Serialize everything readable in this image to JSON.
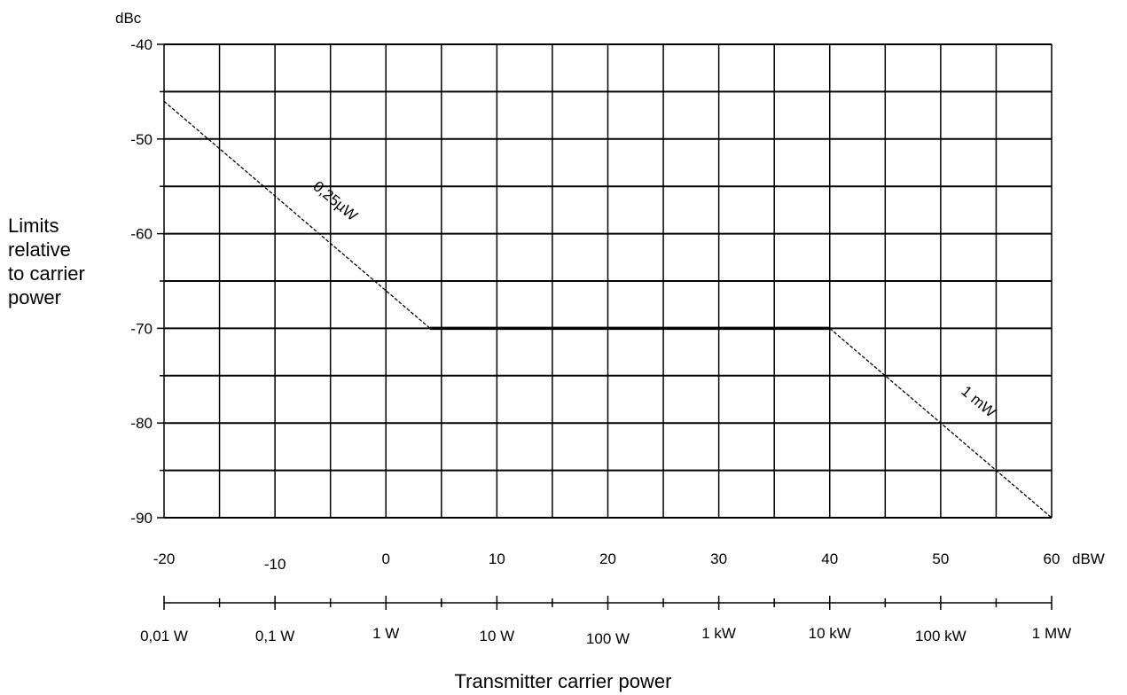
{
  "chart_data": {
    "type": "line",
    "title": "",
    "y_unit": "dBc",
    "ylabel_lines": [
      "Limits",
      "relative",
      "to carrier",
      "power"
    ],
    "xlabel": "Transmitter carrier power",
    "x_unit": "dBW",
    "xlim": [
      -20,
      60
    ],
    "ylim": [
      -90,
      -40
    ],
    "x_ticks": [
      "-20",
      "-10",
      "0",
      "10",
      "20",
      "30",
      "40",
      "50",
      "60"
    ],
    "x_tick_values": [
      -20,
      -10,
      0,
      10,
      20,
      30,
      40,
      50,
      60
    ],
    "power_ticks": [
      "0,01 W",
      "0,1 W",
      "1 W",
      "10 W",
      "100 W",
      "1 kW",
      "10 kW",
      "100 kW",
      "1 MW"
    ],
    "y_ticks": [
      "-40",
      "-50",
      "-60",
      "-70",
      "-80",
      "-90"
    ],
    "y_tick_values": [
      -40,
      -50,
      -60,
      -70,
      -80,
      -90
    ],
    "grid": true,
    "series": [
      {
        "name": "0,25µW",
        "style": "dashed",
        "x": [
          -20,
          3.98
        ],
        "y": [
          -46.02,
          -70
        ]
      },
      {
        "style": "solid",
        "x": [
          3.98,
          40
        ],
        "y": [
          -70,
          -70
        ]
      },
      {
        "name": "1 mW",
        "style": "dashed",
        "x": [
          40,
          60
        ],
        "y": [
          -70,
          -90
        ]
      }
    ],
    "annotations": [
      "0,25µW",
      "1 mW"
    ]
  }
}
